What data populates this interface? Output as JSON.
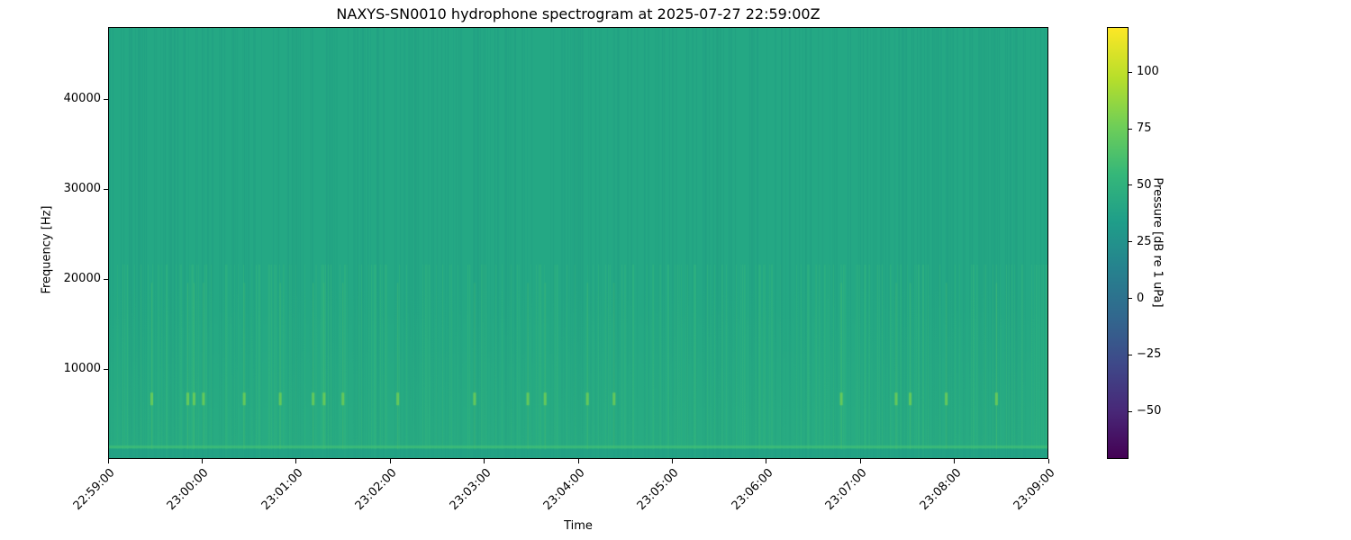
{
  "chart_data": {
    "type": "heatmap",
    "title": "NAXYS-SN0010 hydrophone spectrogram at 2025-07-27 22:59:00Z",
    "xlabel": "Time",
    "ylabel": "Frequency [Hz]",
    "xlim": [
      "22:59:00",
      "23:09:00"
    ],
    "ylim": [
      0,
      48000
    ],
    "x_ticks": [
      "22:59:00",
      "23:00:00",
      "23:01:00",
      "23:02:00",
      "23:03:00",
      "23:04:00",
      "23:05:00",
      "23:06:00",
      "23:07:00",
      "23:08:00",
      "23:09:00"
    ],
    "y_ticks": [
      10000,
      20000,
      30000,
      40000
    ],
    "colorbar": {
      "label": "Pressure [dB re 1 uPa]",
      "colormap": "viridis",
      "range": [
        -71,
        120
      ],
      "ticks": [
        -50,
        -25,
        0,
        25,
        50,
        75,
        100
      ]
    },
    "background_level_db": 55,
    "low_frequency_band_hz": [
      0,
      1000
    ],
    "transient_band_hz": 6500,
    "transient_times": [
      "22:59:27",
      "22:59:50",
      "22:59:54",
      "23:00:00",
      "23:00:26",
      "23:00:49",
      "23:01:10",
      "23:01:17",
      "23:01:29",
      "23:02:04",
      "23:02:53",
      "23:03:27",
      "23:03:38",
      "23:04:05",
      "23:04:22",
      "23:06:47",
      "23:07:22",
      "23:07:31",
      "23:07:54",
      "23:08:26"
    ],
    "grid": false
  }
}
